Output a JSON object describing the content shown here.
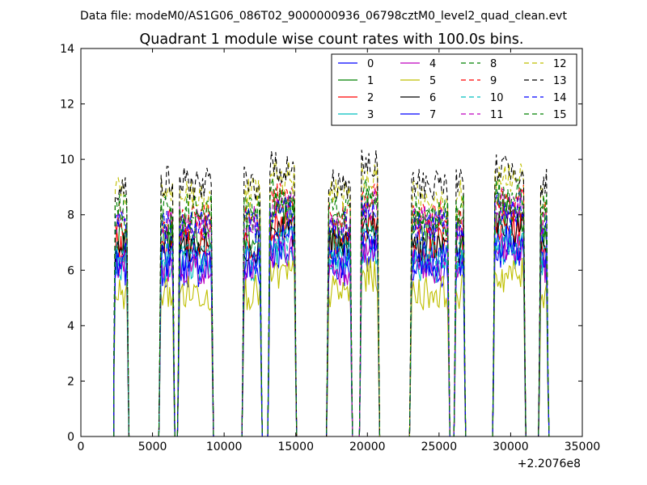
{
  "header": {
    "data_file_label": "Data file: modeM0/AS1G06_086T02_9000000936_06798cztM0_level2_quad_clean.evt"
  },
  "chart_data": {
    "type": "line",
    "title": "Quadrant 1 module wise count rates with 100.0s bins.",
    "xlabel": "",
    "ylabel": "",
    "x_offset_label": "+2.2076e8",
    "xlim": [
      0,
      35000
    ],
    "ylim": [
      0,
      14
    ],
    "x_ticks": [
      "0",
      "5000",
      "10000",
      "15000",
      "20000",
      "25000",
      "30000",
      "35000"
    ],
    "y_ticks": [
      "0",
      "2",
      "4",
      "6",
      "8",
      "10",
      "12",
      "14"
    ],
    "grid": false,
    "legend_position": "top-right",
    "segments": [
      [
        2300,
        3300
      ],
      [
        5500,
        6500
      ],
      [
        6800,
        9200
      ],
      [
        11300,
        12600
      ],
      [
        13100,
        15000
      ],
      [
        17200,
        18900
      ],
      [
        19500,
        20800
      ],
      [
        23000,
        25700
      ],
      [
        26100,
        26800
      ],
      [
        28800,
        31000
      ],
      [
        32000,
        32600
      ]
    ],
    "colors": [
      "#0000ff",
      "#008000",
      "#ff0000",
      "#00bfbf",
      "#bf00bf",
      "#bfbf00",
      "#000000",
      "#0000ff",
      "#008000",
      "#ff0000",
      "#00bfbf",
      "#bf00bf",
      "#bfbf00",
      "#000000",
      "#0000ff",
      "#008000"
    ],
    "series": [
      {
        "name": "0",
        "level": 6.0,
        "style": "solid"
      },
      {
        "name": "1",
        "level": 7.3,
        "style": "solid"
      },
      {
        "name": "2",
        "level": 6.9,
        "style": "solid"
      },
      {
        "name": "3",
        "level": 6.2,
        "style": "solid"
      },
      {
        "name": "4",
        "level": 6.1,
        "style": "solid"
      },
      {
        "name": "5",
        "level": 5.2,
        "style": "solid"
      },
      {
        "name": "6",
        "level": 6.9,
        "style": "solid"
      },
      {
        "name": "7",
        "level": 6.4,
        "style": "solid"
      },
      {
        "name": "8",
        "level": 7.7,
        "style": "dashed"
      },
      {
        "name": "9",
        "level": 7.9,
        "style": "dashed"
      },
      {
        "name": "10",
        "level": 6.6,
        "style": "dashed"
      },
      {
        "name": "11",
        "level": 7.7,
        "style": "dashed"
      },
      {
        "name": "12",
        "level": 8.7,
        "style": "dashed"
      },
      {
        "name": "13",
        "level": 9.1,
        "style": "dashed"
      },
      {
        "name": "14",
        "level": 7.6,
        "style": "dashed"
      },
      {
        "name": "15",
        "level": 8.1,
        "style": "dashed"
      }
    ]
  }
}
